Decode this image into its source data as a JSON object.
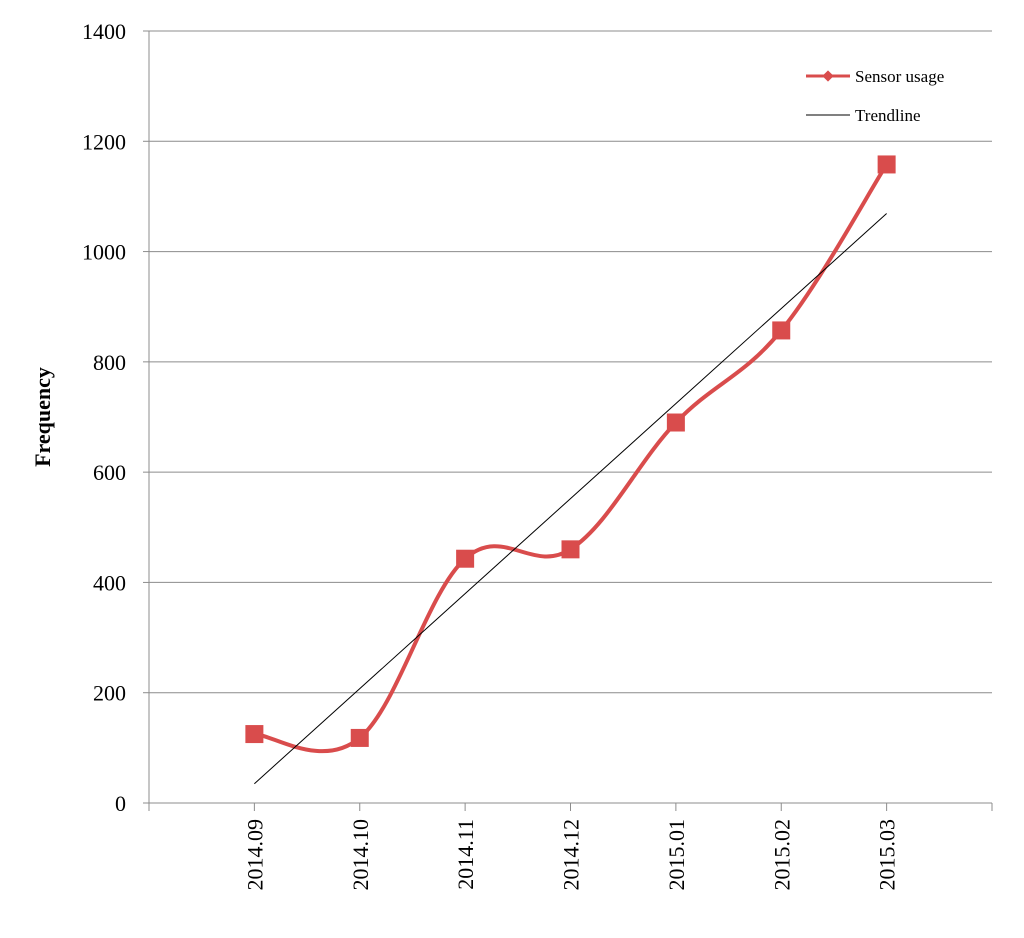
{
  "chart_data": {
    "type": "line",
    "title": "",
    "xlabel": "",
    "ylabel": "Frequency",
    "categories": [
      "2014.09",
      "2014.10",
      "2014.11",
      "2014.12",
      "2015.01",
      "2015.02",
      "2015.03"
    ],
    "ylim": [
      0,
      1400
    ],
    "yticks": [
      0,
      200,
      400,
      600,
      800,
      1000,
      1200,
      1400
    ],
    "grid": true,
    "legend_position": "top-right",
    "series": [
      {
        "name": "Sensor usage",
        "values": [
          125,
          118,
          443,
          460,
          690,
          857,
          1158
        ],
        "color": "#d94c4c",
        "smooth": true,
        "marker": "square"
      },
      {
        "name": "Trendline",
        "values": [
          35,
          207,
          380,
          552,
          724,
          896,
          1069
        ],
        "color": "#000000",
        "smooth": false,
        "marker": "none"
      }
    ]
  }
}
